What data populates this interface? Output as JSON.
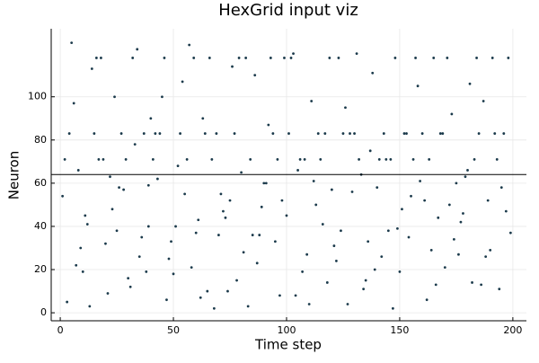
{
  "chart_data": {
    "type": "scatter",
    "title": "HexGrid input viz",
    "x_label": "Time step",
    "y_label": "Neuron",
    "color": "#1b3a4b",
    "grid": true,
    "xlim": [
      -4,
      206
    ],
    "xticks": [
      0,
      50,
      100,
      150,
      200
    ],
    "ylim": [
      -3.7,
      131.5
    ],
    "yticks": [
      0,
      20,
      40,
      60,
      80,
      100
    ],
    "hlines": [
      64
    ],
    "x": [
      3,
      7,
      12,
      18,
      22,
      27,
      31,
      36,
      41,
      45,
      50,
      55,
      59,
      63,
      68,
      72,
      77,
      81,
      86,
      90,
      95,
      99,
      104,
      108,
      113,
      117,
      122,
      126,
      131,
      135,
      140,
      144,
      149,
      153,
      158,
      162,
      167,
      171,
      176,
      180,
      185,
      189,
      194,
      198,
      2,
      9,
      15,
      21,
      28,
      34,
      39,
      46,
      52,
      58,
      64,
      70,
      76,
      83,
      89,
      96,
      101,
      107,
      112,
      119,
      124,
      130,
      137,
      142,
      148,
      155,
      160,
      166,
      173,
      178,
      184,
      190,
      196,
      5,
      11,
      17,
      24,
      30,
      37,
      43,
      48,
      54,
      61,
      67,
      74,
      79,
      85,
      92,
      98,
      103,
      110,
      115,
      121,
      128,
      133,
      139,
      146,
      151,
      157,
      164,
      169,
      175,
      182,
      187,
      193,
      199,
      1,
      8,
      14,
      20,
      26,
      33,
      38,
      44,
      51,
      57,
      62,
      69,
      75,
      80,
      87,
      93,
      100,
      106,
      111,
      118,
      125,
      129,
      136,
      141,
      147,
      152,
      159,
      165,
      170,
      177,
      183,
      188,
      195,
      4,
      10,
      16,
      23,
      29,
      35,
      40,
      47,
      53,
      60,
      66,
      71,
      78,
      84,
      91,
      97,
      102,
      109,
      114,
      120,
      127,
      132,
      138,
      145,
      150,
      156,
      161,
      168,
      174,
      179,
      186,
      191,
      197,
      6,
      13,
      19,
      25,
      32,
      39,
      42,
      49,
      56,
      65,
      73,
      82,
      88,
      94,
      105,
      116,
      123,
      134,
      143,
      154,
      163,
      172,
      181,
      192
    ],
    "y": [
      5,
      22,
      41,
      118,
      63,
      83,
      12,
      35,
      71,
      100,
      18,
      55,
      118,
      90,
      2,
      47,
      83,
      28,
      110,
      60,
      33,
      118,
      8,
      71,
      50,
      83,
      24,
      95,
      120,
      15,
      58,
      71,
      39,
      83,
      105,
      6,
      44,
      118,
      27,
      66,
      83,
      52,
      11,
      118,
      71,
      30,
      83,
      9,
      57,
      122,
      40,
      118,
      68,
      21,
      83,
      36,
      114,
      3,
      49,
      71,
      83,
      19,
      61,
      118,
      38,
      83,
      75,
      26,
      118,
      54,
      83,
      13,
      92,
      46,
      118,
      29,
      83,
      125,
      45,
      71,
      100,
      16,
      83,
      62,
      25,
      107,
      43,
      71,
      10,
      118,
      36,
      87,
      52,
      120,
      4,
      71,
      31,
      83,
      64,
      20,
      71,
      48,
      118,
      29,
      83,
      60,
      14,
      98,
      71,
      37,
      54,
      66,
      113,
      32,
      58,
      78,
      19,
      83,
      40,
      124,
      7,
      83,
      52,
      65,
      23,
      118,
      45,
      71,
      98,
      14,
      83,
      56,
      33,
      71,
      2,
      83,
      61,
      118,
      21,
      42,
      71,
      26,
      58,
      83,
      19,
      118,
      48,
      71,
      26,
      90,
      6,
      83,
      37,
      118,
      55,
      15,
      71,
      60,
      8,
      118,
      27,
      83,
      57,
      4,
      71,
      111,
      38,
      19,
      71,
      52,
      83,
      34,
      63,
      13,
      118,
      47,
      97,
      3,
      71,
      38,
      118,
      59,
      83,
      33,
      71,
      10,
      44,
      118,
      36,
      83,
      66,
      41,
      118,
      11,
      83,
      35,
      71,
      50,
      106,
      83
    ]
  }
}
